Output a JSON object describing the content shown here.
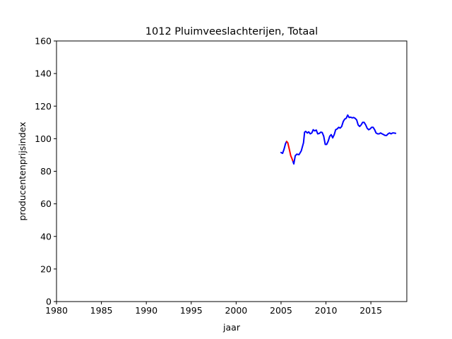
{
  "chart_data": {
    "type": "line",
    "title": "1012 Pluimveeslachterijen, Totaal",
    "xlabel": "jaar",
    "ylabel": "producentenprijsindex",
    "xlim": [
      1980,
      2019
    ],
    "ylim": [
      0,
      160
    ],
    "xticks": [
      "1980",
      "1985",
      "1990",
      "1995",
      "2000",
      "2005",
      "2010",
      "2015"
    ],
    "yticks": [
      "0",
      "20",
      "40",
      "60",
      "80",
      "100",
      "120",
      "140",
      "160"
    ],
    "grid": false,
    "legend": "none",
    "series": [
      {
        "color": "#0000ff",
        "segments": [
          [
            [
              2005.0,
              91.5
            ],
            [
              2005.17,
              91.0
            ],
            [
              2005.33,
              93.5
            ],
            [
              2005.5,
              97.0
            ],
            [
              2005.62,
              98.3
            ]
          ],
          [
            [
              2006.3,
              86.5
            ],
            [
              2006.42,
              84.5
            ],
            [
              2006.58,
              89.5
            ],
            [
              2006.75,
              90.5
            ],
            [
              2007.0,
              90.2
            ],
            [
              2007.25,
              92.5
            ],
            [
              2007.5,
              97.5
            ],
            [
              2007.62,
              104.0
            ],
            [
              2007.75,
              104.5
            ],
            [
              2007.92,
              103.5
            ],
            [
              2008.08,
              104.2
            ],
            [
              2008.25,
              103.0
            ],
            [
              2008.42,
              103.5
            ],
            [
              2008.58,
              105.5
            ],
            [
              2008.75,
              104.8
            ],
            [
              2008.92,
              105.3
            ],
            [
              2009.08,
              103.0
            ],
            [
              2009.25,
              103.2
            ],
            [
              2009.42,
              104.0
            ],
            [
              2009.58,
              103.8
            ],
            [
              2009.75,
              101.5
            ],
            [
              2009.92,
              96.5
            ],
            [
              2010.08,
              96.5
            ],
            [
              2010.25,
              98.5
            ],
            [
              2010.42,
              101.5
            ],
            [
              2010.58,
              102.5
            ],
            [
              2010.75,
              100.5
            ],
            [
              2010.92,
              102.5
            ],
            [
              2011.08,
              105.5
            ],
            [
              2011.25,
              106.0
            ],
            [
              2011.42,
              107.0
            ],
            [
              2011.58,
              106.5
            ],
            [
              2011.75,
              107.5
            ],
            [
              2011.92,
              110.5
            ],
            [
              2012.08,
              112.0
            ],
            [
              2012.25,
              112.5
            ],
            [
              2012.42,
              114.5
            ],
            [
              2012.58,
              113.0
            ],
            [
              2012.75,
              113.2
            ],
            [
              2012.92,
              112.8
            ],
            [
              2013.08,
              113.0
            ],
            [
              2013.25,
              112.5
            ],
            [
              2013.42,
              111.5
            ],
            [
              2013.58,
              108.5
            ],
            [
              2013.75,
              107.5
            ],
            [
              2013.92,
              108.5
            ],
            [
              2014.08,
              110.0
            ],
            [
              2014.25,
              110.0
            ],
            [
              2014.42,
              108.5
            ],
            [
              2014.58,
              106.5
            ],
            [
              2014.75,
              105.5
            ],
            [
              2014.92,
              106.0
            ],
            [
              2015.08,
              107.0
            ],
            [
              2015.25,
              107.0
            ],
            [
              2015.42,
              105.5
            ],
            [
              2015.58,
              103.5
            ],
            [
              2015.75,
              103.0
            ],
            [
              2015.92,
              103.0
            ],
            [
              2016.08,
              103.5
            ],
            [
              2016.25,
              103.0
            ],
            [
              2016.42,
              102.5
            ],
            [
              2016.58,
              102.0
            ],
            [
              2016.75,
              102.0
            ],
            [
              2016.92,
              103.0
            ],
            [
              2017.08,
              103.5
            ],
            [
              2017.25,
              103.0
            ],
            [
              2017.42,
              103.5
            ],
            [
              2017.58,
              103.5
            ],
            [
              2017.75,
              103.3
            ]
          ]
        ]
      },
      {
        "color": "#ff0000",
        "segments": [
          [
            [
              2005.62,
              98.3
            ],
            [
              2005.75,
              97.5
            ],
            [
              2005.92,
              93.5
            ],
            [
              2006.08,
              89.5
            ],
            [
              2006.2,
              88.0
            ],
            [
              2006.3,
              86.5
            ]
          ]
        ]
      }
    ]
  }
}
